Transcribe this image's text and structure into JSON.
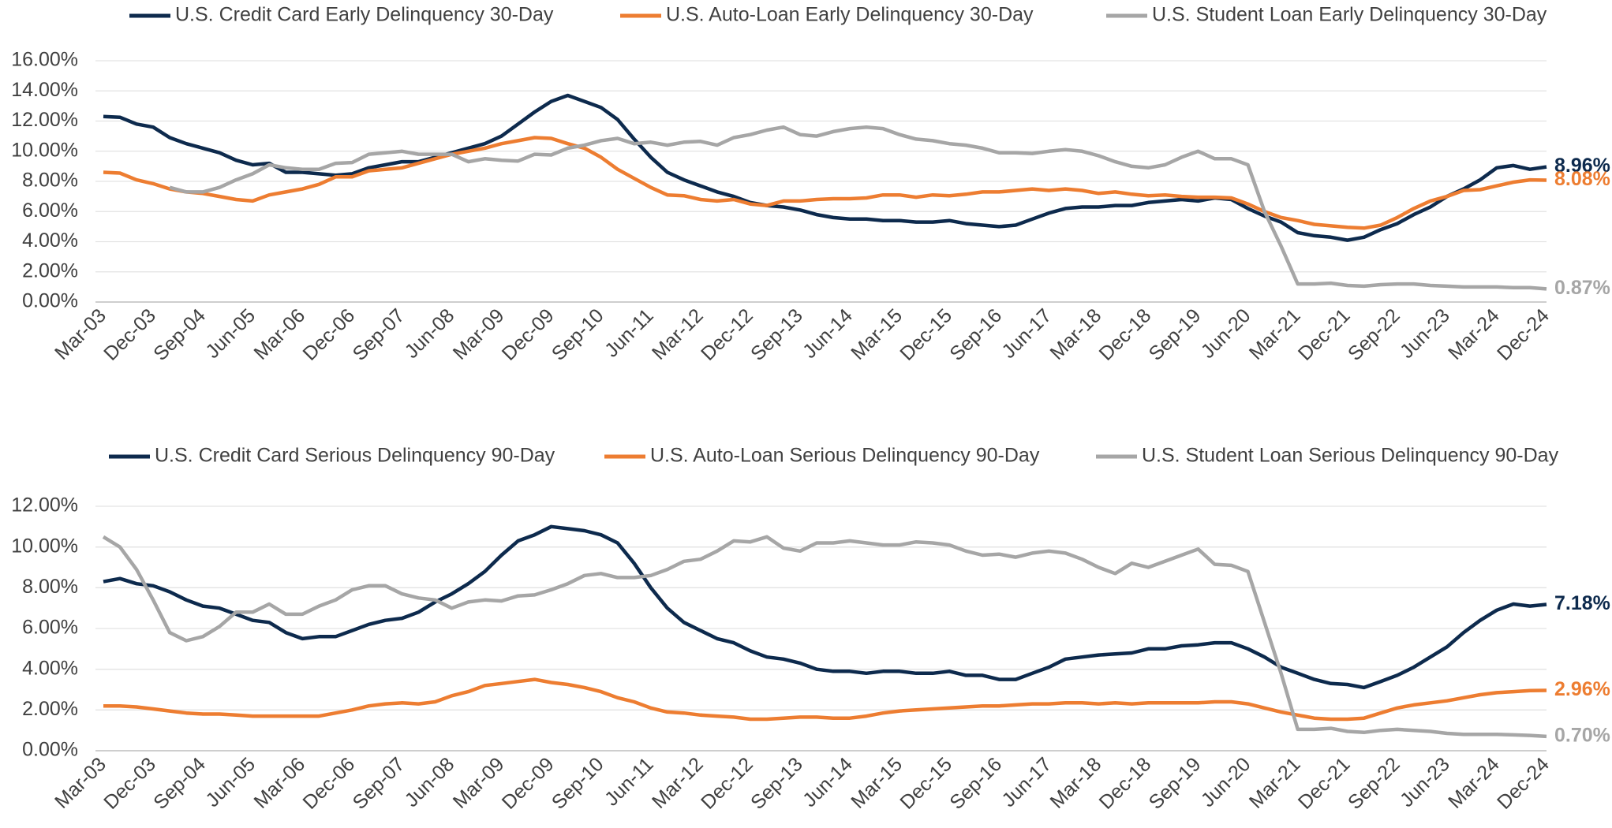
{
  "chart_data": [
    {
      "type": "line",
      "categories": [
        "Mar-03",
        null,
        null,
        "Dec-03",
        null,
        null,
        "Sep-04",
        null,
        null,
        "Jun-05",
        null,
        null,
        "Mar-06",
        null,
        null,
        "Dec-06",
        null,
        null,
        "Sep-07",
        null,
        null,
        "Jun-08",
        null,
        null,
        "Mar-09",
        null,
        null,
        "Dec-09",
        null,
        null,
        "Sep-10",
        null,
        null,
        "Jun-11",
        null,
        null,
        "Mar-12",
        null,
        null,
        "Dec-12",
        null,
        null,
        "Sep-13",
        null,
        null,
        "Jun-14",
        null,
        null,
        "Mar-15",
        null,
        null,
        "Dec-15",
        null,
        null,
        "Sep-16",
        null,
        null,
        "Jun-17",
        null,
        null,
        "Mar-18",
        null,
        null,
        "Dec-18",
        null,
        null,
        "Sep-19",
        null,
        null,
        "Jun-20",
        null,
        null,
        "Mar-21",
        null,
        null,
        "Dec-21",
        null,
        null,
        "Sep-22",
        null,
        null,
        "Jun-23",
        null,
        null,
        "Mar-24",
        null,
        null,
        "Dec-24"
      ],
      "ylim": [
        0,
        16
      ],
      "yticks": [
        {
          "value": 0,
          "label": "0.00%"
        },
        {
          "value": 2,
          "label": "2.00%"
        },
        {
          "value": 4,
          "label": "4.00%"
        },
        {
          "value": 6,
          "label": "6.00%"
        },
        {
          "value": 8,
          "label": "8.00%"
        },
        {
          "value": 10,
          "label": "10.00%"
        },
        {
          "value": 12,
          "label": "12.00%"
        },
        {
          "value": 14,
          "label": "14.00%"
        },
        {
          "value": 16,
          "label": "16.00%"
        }
      ],
      "grid": true,
      "series": [
        {
          "name": "U.S.  Credit Card Early Delinquency 30-Day",
          "color": "#0d2a4d",
          "values": [
            12.3,
            12.25,
            11.8,
            11.6,
            10.9,
            10.5,
            10.2,
            9.9,
            9.4,
            9.1,
            9.2,
            8.6,
            8.6,
            8.5,
            8.4,
            8.5,
            8.9,
            9.1,
            9.3,
            9.3,
            9.6,
            9.9,
            10.2,
            10.5,
            11.0,
            11.8,
            12.6,
            13.3,
            13.7,
            13.3,
            12.9,
            12.1,
            10.8,
            9.6,
            8.6,
            8.1,
            7.7,
            7.3,
            7.0,
            6.6,
            6.4,
            6.3,
            6.1,
            5.8,
            5.6,
            5.5,
            5.5,
            5.4,
            5.4,
            5.3,
            5.3,
            5.4,
            5.2,
            5.1,
            5.0,
            5.1,
            5.5,
            5.9,
            6.2,
            6.3,
            6.3,
            6.4,
            6.4,
            6.6,
            6.7,
            6.8,
            6.7,
            6.9,
            6.8,
            6.2,
            5.7,
            5.3,
            4.6,
            4.4,
            4.3,
            4.1,
            4.3,
            4.8,
            5.2,
            5.8,
            6.3,
            7.0,
            7.5,
            8.1,
            8.9,
            9.05,
            8.8,
            8.96
          ],
          "value_labels": {
            "87": "8.96%"
          }
        },
        {
          "name": "U.S. Auto-Loan Early Delinquency 30-Day",
          "color": "#ed7d31",
          "values": [
            8.6,
            8.55,
            8.1,
            7.85,
            7.5,
            7.3,
            7.2,
            7.0,
            6.8,
            6.7,
            7.1,
            7.3,
            7.5,
            7.8,
            8.3,
            8.3,
            8.7,
            8.8,
            8.9,
            9.2,
            9.5,
            9.8,
            10.0,
            10.2,
            10.5,
            10.7,
            10.9,
            10.85,
            10.5,
            10.2,
            9.6,
            8.8,
            8.2,
            7.6,
            7.1,
            7.05,
            6.8,
            6.7,
            6.8,
            6.5,
            6.4,
            6.7,
            6.7,
            6.8,
            6.85,
            6.85,
            6.9,
            7.1,
            7.1,
            6.95,
            7.1,
            7.05,
            7.15,
            7.3,
            7.3,
            7.4,
            7.5,
            7.4,
            7.5,
            7.4,
            7.2,
            7.3,
            7.15,
            7.05,
            7.1,
            7.0,
            6.95,
            6.95,
            6.9,
            6.5,
            6.0,
            5.6,
            5.4,
            5.15,
            5.05,
            4.95,
            4.9,
            5.1,
            5.6,
            6.2,
            6.7,
            7.0,
            7.4,
            7.45,
            7.7,
            7.95,
            8.1,
            8.08
          ],
          "value_labels": {
            "87": "8.08%"
          }
        },
        {
          "name": "U.S. Student Loan Early Delinquency 30-Day",
          "color": "#a6a6a6",
          "values": [
            null,
            null,
            null,
            null,
            7.6,
            7.3,
            7.3,
            7.6,
            8.1,
            8.5,
            9.1,
            8.9,
            8.8,
            8.8,
            9.2,
            9.25,
            9.8,
            9.9,
            10.0,
            9.8,
            9.8,
            9.8,
            9.3,
            9.5,
            9.4,
            9.35,
            9.8,
            9.75,
            10.2,
            10.4,
            10.7,
            10.85,
            10.5,
            10.6,
            10.4,
            10.6,
            10.65,
            10.4,
            10.9,
            11.1,
            11.4,
            11.6,
            11.1,
            11.0,
            11.3,
            11.5,
            11.6,
            11.5,
            11.1,
            10.8,
            10.7,
            10.5,
            10.4,
            10.2,
            9.9,
            9.9,
            9.85,
            10.0,
            10.1,
            10.0,
            9.7,
            9.3,
            9.0,
            8.9,
            9.1,
            9.6,
            10.0,
            9.5,
            9.5,
            9.1,
            6.0,
            3.7,
            1.2,
            1.2,
            1.25,
            1.1,
            1.05,
            1.15,
            1.2,
            1.2,
            1.1,
            1.05,
            1.0,
            1.0,
            1.0,
            0.95,
            0.95,
            0.87
          ],
          "value_labels": {
            "87": "0.87%"
          }
        }
      ]
    },
    {
      "type": "line",
      "categories": [
        "Mar-03",
        null,
        null,
        "Dec-03",
        null,
        null,
        "Sep-04",
        null,
        null,
        "Jun-05",
        null,
        null,
        "Mar-06",
        null,
        null,
        "Dec-06",
        null,
        null,
        "Sep-07",
        null,
        null,
        "Jun-08",
        null,
        null,
        "Mar-09",
        null,
        null,
        "Dec-09",
        null,
        null,
        "Sep-10",
        null,
        null,
        "Jun-11",
        null,
        null,
        "Mar-12",
        null,
        null,
        "Dec-12",
        null,
        null,
        "Sep-13",
        null,
        null,
        "Jun-14",
        null,
        null,
        "Mar-15",
        null,
        null,
        "Dec-15",
        null,
        null,
        "Sep-16",
        null,
        null,
        "Jun-17",
        null,
        null,
        "Mar-18",
        null,
        null,
        "Dec-18",
        null,
        null,
        "Sep-19",
        null,
        null,
        "Jun-20",
        null,
        null,
        "Mar-21",
        null,
        null,
        "Dec-21",
        null,
        null,
        "Sep-22",
        null,
        null,
        "Jun-23",
        null,
        null,
        "Mar-24",
        null,
        null,
        "Dec-24"
      ],
      "ylim": [
        0,
        12
      ],
      "yticks": [
        {
          "value": 0,
          "label": "0.00%"
        },
        {
          "value": 2,
          "label": "2.00%"
        },
        {
          "value": 4,
          "label": "4.00%"
        },
        {
          "value": 6,
          "label": "6.00%"
        },
        {
          "value": 8,
          "label": "8.00%"
        },
        {
          "value": 10,
          "label": "10.00%"
        },
        {
          "value": 12,
          "label": "12.00%"
        }
      ],
      "grid": true,
      "series": [
        {
          "name": "U.S.  Credit Card Serious Delinquency 90-Day",
          "color": "#0d2a4d",
          "values": [
            8.3,
            8.45,
            8.2,
            8.1,
            7.8,
            7.4,
            7.1,
            7.0,
            6.7,
            6.4,
            6.3,
            5.8,
            5.5,
            5.6,
            5.6,
            5.9,
            6.2,
            6.4,
            6.5,
            6.8,
            7.3,
            7.7,
            8.2,
            8.8,
            9.6,
            10.3,
            10.6,
            11.0,
            10.9,
            10.8,
            10.6,
            10.2,
            9.2,
            8.0,
            7.0,
            6.3,
            5.9,
            5.5,
            5.3,
            4.9,
            4.6,
            4.5,
            4.3,
            4.0,
            3.9,
            3.9,
            3.8,
            3.9,
            3.9,
            3.8,
            3.8,
            3.9,
            3.7,
            3.7,
            3.5,
            3.5,
            3.8,
            4.1,
            4.5,
            4.6,
            4.7,
            4.75,
            4.8,
            5.0,
            5.0,
            5.15,
            5.2,
            5.3,
            5.3,
            5.0,
            4.6,
            4.1,
            3.8,
            3.5,
            3.3,
            3.25,
            3.1,
            3.4,
            3.7,
            4.1,
            4.6,
            5.1,
            5.8,
            6.4,
            6.9,
            7.2,
            7.1,
            7.18
          ],
          "value_labels": {
            "87": "7.18%"
          }
        },
        {
          "name": "U.S. Auto-Loan Serious Delinquency 90-Day",
          "color": "#ed7d31",
          "values": [
            2.2,
            2.2,
            2.15,
            2.05,
            1.95,
            1.85,
            1.8,
            1.8,
            1.75,
            1.7,
            1.7,
            1.7,
            1.7,
            1.7,
            1.85,
            2.0,
            2.2,
            2.3,
            2.35,
            2.3,
            2.4,
            2.7,
            2.9,
            3.2,
            3.3,
            3.4,
            3.5,
            3.35,
            3.25,
            3.1,
            2.9,
            2.6,
            2.4,
            2.1,
            1.9,
            1.85,
            1.75,
            1.7,
            1.65,
            1.55,
            1.55,
            1.6,
            1.65,
            1.65,
            1.6,
            1.6,
            1.7,
            1.85,
            1.95,
            2.0,
            2.05,
            2.1,
            2.15,
            2.2,
            2.2,
            2.25,
            2.3,
            2.3,
            2.35,
            2.35,
            2.3,
            2.35,
            2.3,
            2.35,
            2.35,
            2.35,
            2.35,
            2.4,
            2.4,
            2.3,
            2.1,
            1.9,
            1.75,
            1.6,
            1.55,
            1.55,
            1.6,
            1.85,
            2.1,
            2.25,
            2.35,
            2.45,
            2.6,
            2.75,
            2.85,
            2.9,
            2.95,
            2.96
          ],
          "value_labels": {
            "87": "2.96%"
          }
        },
        {
          "name": "U.S. Student Loan Serious Delinquency 90-Day",
          "color": "#a6a6a6",
          "values": [
            10.5,
            10.0,
            8.9,
            7.4,
            5.8,
            5.4,
            5.6,
            6.1,
            6.8,
            6.8,
            7.2,
            6.7,
            6.7,
            7.1,
            7.4,
            7.9,
            8.1,
            8.1,
            7.7,
            7.5,
            7.4,
            7.0,
            7.3,
            7.4,
            7.35,
            7.6,
            7.65,
            7.9,
            8.2,
            8.6,
            8.7,
            8.5,
            8.5,
            8.6,
            8.9,
            9.3,
            9.4,
            9.8,
            10.3,
            10.25,
            10.5,
            9.95,
            9.8,
            10.2,
            10.2,
            10.3,
            10.2,
            10.1,
            10.1,
            10.25,
            10.2,
            10.1,
            9.8,
            9.6,
            9.65,
            9.5,
            9.7,
            9.8,
            9.7,
            9.4,
            9.0,
            8.7,
            9.2,
            9.0,
            9.3,
            9.6,
            9.9,
            9.15,
            9.1,
            8.8,
            6.3,
            3.8,
            1.05,
            1.05,
            1.1,
            0.95,
            0.9,
            1.0,
            1.05,
            1.0,
            0.95,
            0.85,
            0.8,
            0.8,
            0.8,
            0.78,
            0.75,
            0.7
          ],
          "value_labels": {
            "87": "0.70%"
          }
        }
      ]
    }
  ]
}
